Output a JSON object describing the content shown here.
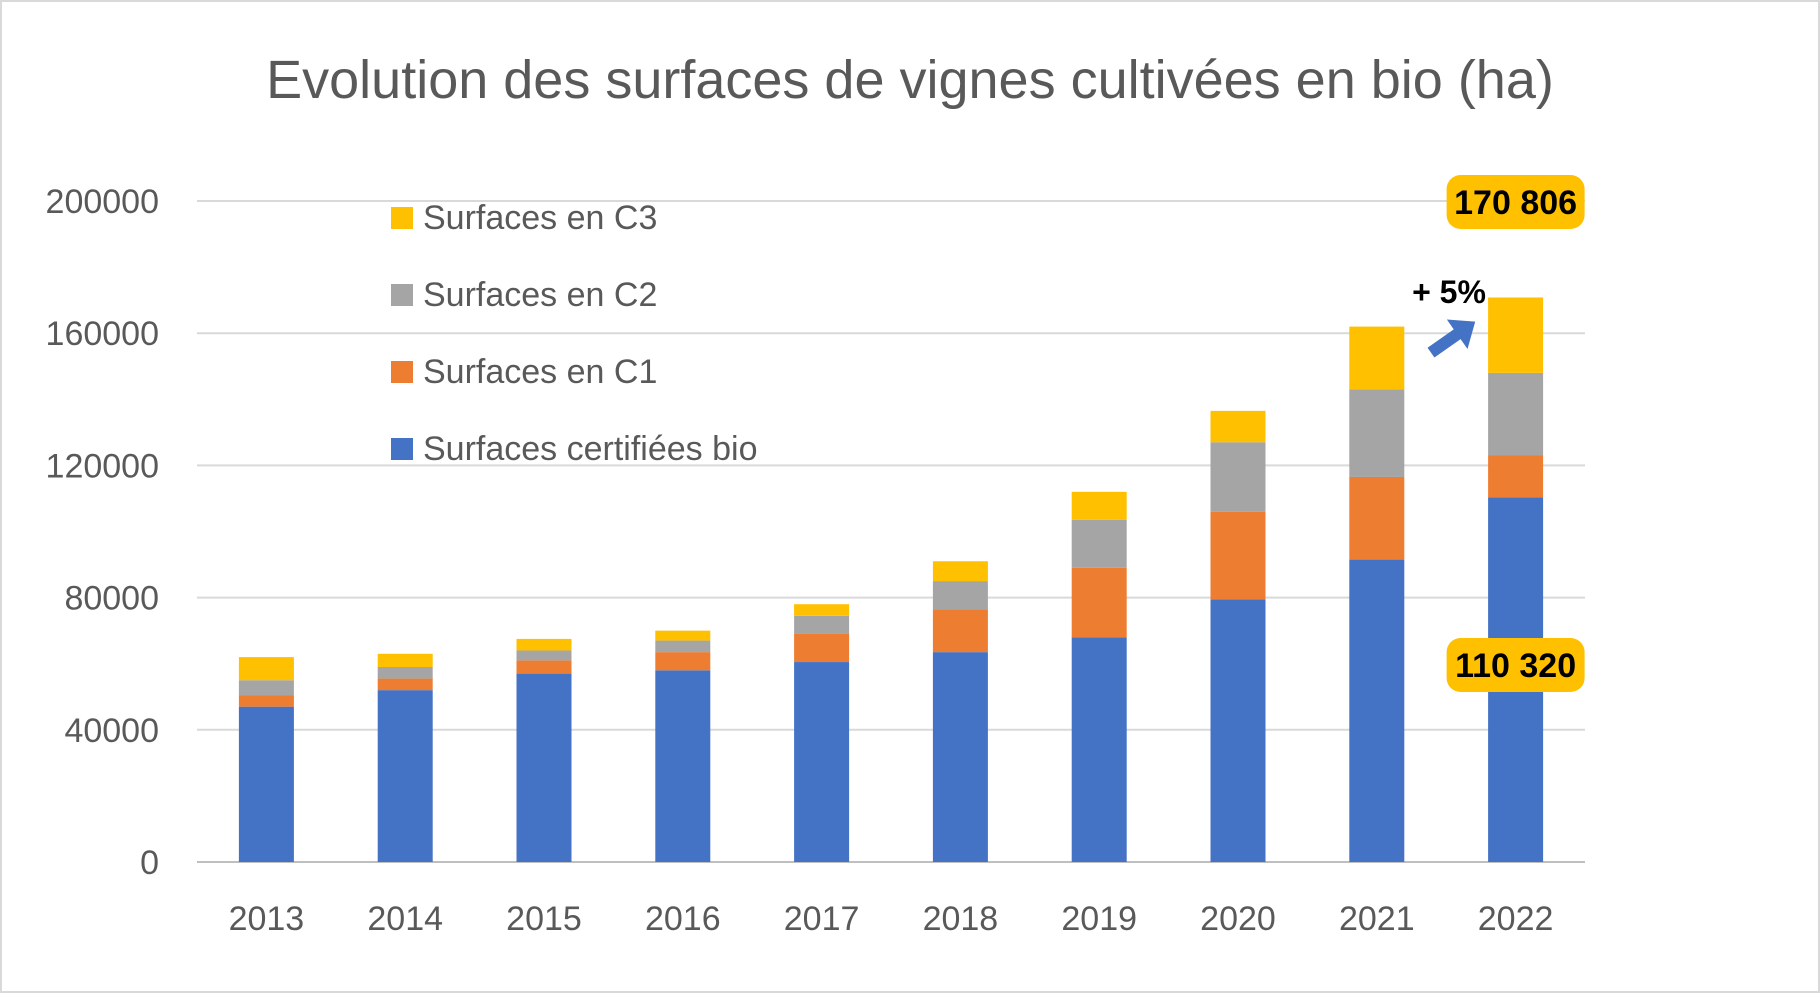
{
  "chart_data": {
    "type": "bar",
    "stacked": true,
    "title": "Evolution des surfaces de vignes cultivées en bio (ha)",
    "xlabel": "",
    "ylabel": "",
    "ylim": [
      0,
      200000
    ],
    "yticks": [
      "0",
      "40000",
      "80000",
      "120000",
      "160000",
      "200000"
    ],
    "ytick_values": [
      0,
      40000,
      80000,
      120000,
      160000,
      200000
    ],
    "grid": true,
    "legend_position": "top-left (inside plot)",
    "categories": [
      "2013",
      "2014",
      "2015",
      "2016",
      "2017",
      "2018",
      "2019",
      "2020",
      "2021",
      "2022"
    ],
    "series": [
      {
        "name": "Surfaces certifiées bio",
        "color": "#4472c4",
        "values": [
          47000,
          52000,
          57000,
          58000,
          60500,
          63500,
          68000,
          79500,
          91500,
          110320
        ]
      },
      {
        "name": "Surfaces en C1",
        "color": "#ed7d31",
        "values": [
          3500,
          3500,
          4000,
          5500,
          8500,
          13000,
          21000,
          26500,
          25000,
          12680
        ]
      },
      {
        "name": "Surfaces en C2",
        "color": "#a5a5a5",
        "values": [
          4500,
          3500,
          3000,
          3500,
          5500,
          8500,
          14500,
          21000,
          26500,
          25000
        ]
      },
      {
        "name": "Surfaces en C3",
        "color": "#ffc000",
        "values": [
          7000,
          4000,
          3500,
          3000,
          3500,
          6000,
          8500,
          9500,
          19000,
          22806
        ]
      }
    ],
    "legend_order": [
      "Surfaces en C3",
      "Surfaces en C2",
      "Surfaces en C1",
      "Surfaces certifiées bio"
    ],
    "annotations": {
      "total_label": "170 806",
      "certified_label": "110 320",
      "growth_label": "+ 5%",
      "label_bg_color": "#ffc000",
      "arrow_color": "#4472c4"
    }
  }
}
